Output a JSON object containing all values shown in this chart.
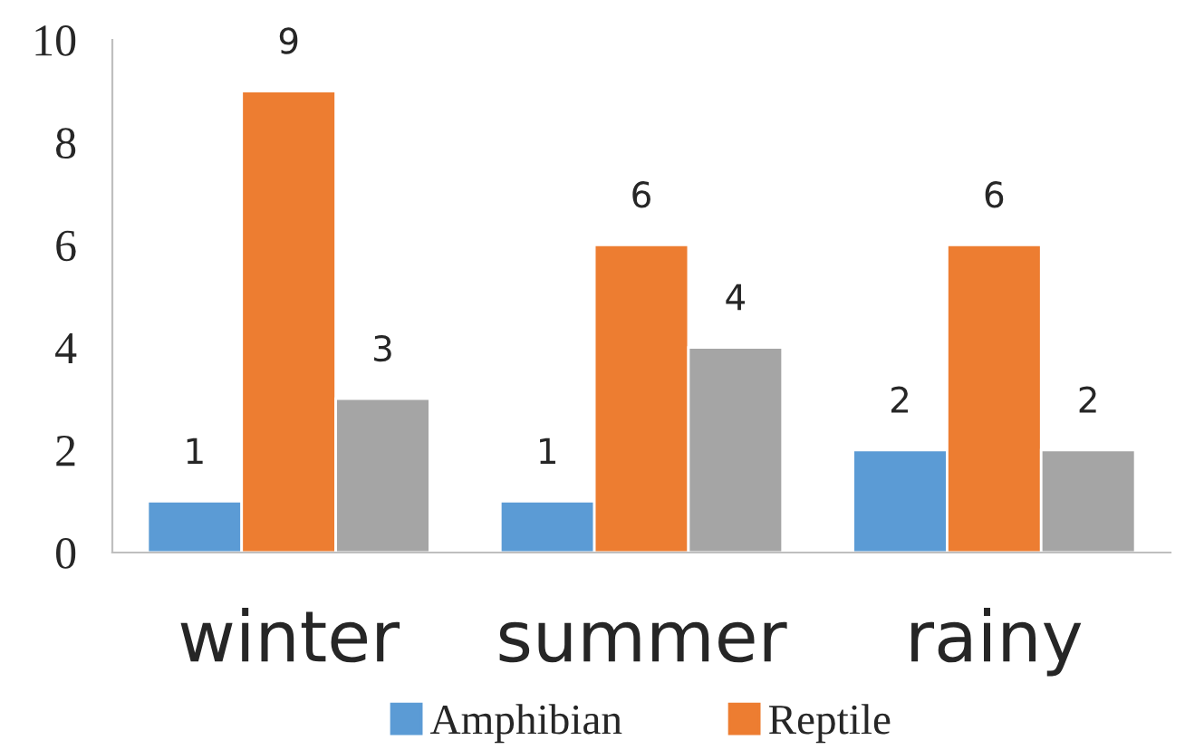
{
  "chart_data": {
    "type": "bar",
    "categories": [
      "winter",
      "summer",
      "rainy"
    ],
    "series": [
      {
        "name": "Amphibian",
        "color": "#5b9bd5",
        "values": [
          1,
          1,
          2
        ]
      },
      {
        "name": "Reptile",
        "color": "#ed7d31",
        "values": [
          9,
          6,
          6
        ]
      },
      {
        "color": "#a5a5a5",
        "values": [
          3,
          4,
          2
        ]
      }
    ],
    "ylim": [
      0,
      10
    ],
    "yticks": [
      0,
      2,
      4,
      6,
      8,
      10
    ],
    "grid": false,
    "legend": "bottom",
    "data_labels": true
  }
}
